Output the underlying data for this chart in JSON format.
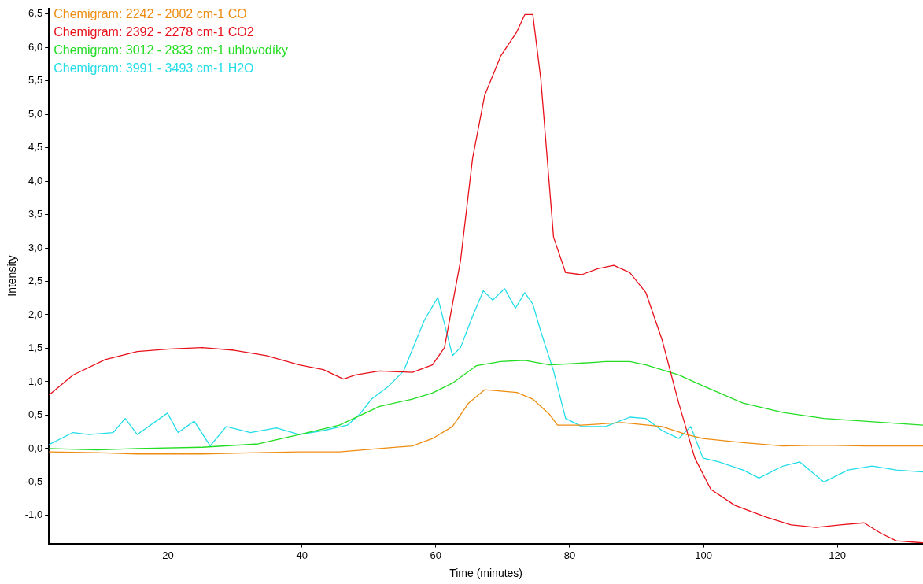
{
  "chart_data": {
    "type": "line",
    "xlabel": "Time (minutes)",
    "ylabel": "Intensity",
    "xlim": [
      2.2,
      132.8
    ],
    "ylim": [
      -1.42,
      6.58
    ],
    "xticks": [
      20,
      40,
      60,
      80,
      100,
      120
    ],
    "yticks": [
      {
        "value": -1.0,
        "label": "-1,0"
      },
      {
        "value": -0.5,
        "label": "-0,5"
      },
      {
        "value": 0,
        "label": "0,0"
      },
      {
        "value": 0.5,
        "label": "0,5"
      },
      {
        "value": 1.0,
        "label": "1,0"
      },
      {
        "value": 1.5,
        "label": "1,5"
      },
      {
        "value": 2.0,
        "label": "2,0"
      },
      {
        "value": 2.5,
        "label": "2,5"
      },
      {
        "value": 3.0,
        "label": "3,0"
      },
      {
        "value": 3.5,
        "label": "3,5"
      },
      {
        "value": 4.0,
        "label": "4,0"
      },
      {
        "value": 4.5,
        "label": "4,5"
      },
      {
        "value": 5.0,
        "label": "5,0"
      },
      {
        "value": 5.5,
        "label": "5,5"
      },
      {
        "value": 6.0,
        "label": "6,0"
      },
      {
        "value": 6.5,
        "label": "6,5"
      }
    ],
    "grid": false,
    "legend": "top left",
    "marker": "none",
    "line_style": "solid",
    "series": [
      {
        "name": "Chemigram: 2242 - 2002 cm-1 CO",
        "color": "#ee8c10",
        "x": [
          2.2,
          9.4,
          15.4,
          25.1,
          33.5,
          39.6,
          45.6,
          51.6,
          56.5,
          59.5,
          62.5,
          64.9,
          67.3,
          69.7,
          72.1,
          74.5,
          77.0,
          78.2,
          81.8,
          87.8,
          93.8,
          97.5,
          99.9,
          105.9,
          111.9,
          118.0,
          124.0,
          132.8
        ],
        "values": [
          -0.05,
          -0.06,
          -0.08,
          -0.08,
          -0.06,
          -0.05,
          -0.05,
          0,
          0.04,
          0.15,
          0.33,
          0.68,
          0.88,
          0.86,
          0.84,
          0.74,
          0.51,
          0.35,
          0.35,
          0.39,
          0.33,
          0.21,
          0.15,
          0.09,
          0.04,
          0.05,
          0.04,
          0.04
        ]
      },
      {
        "name": "Chemigram: 2392 - 2278 cm-1 CO2",
        "color": "#e8101a",
        "x": [
          2.2,
          5.8,
          10.6,
          15.4,
          20.3,
          25.1,
          29.9,
          34.7,
          39.6,
          43.2,
          46.2,
          48.0,
          51.6,
          56.5,
          59.5,
          61.3,
          63.7,
          65.5,
          67.3,
          69.7,
          72.1,
          73.3,
          74.5,
          75.7,
          77.6,
          79.4,
          81.8,
          84.2,
          86.6,
          89.0,
          91.4,
          93.8,
          96.3,
          98.7,
          101.1,
          104.7,
          109.5,
          113.1,
          116.8,
          120.4,
          124.0,
          126.4,
          128.8,
          132.8
        ],
        "values": [
          0.8,
          1.1,
          1.33,
          1.45,
          1.49,
          1.51,
          1.47,
          1.39,
          1.25,
          1.18,
          1.04,
          1.1,
          1.16,
          1.14,
          1.25,
          1.51,
          2.81,
          4.34,
          5.28,
          5.87,
          6.23,
          6.49,
          6.49,
          5.52,
          3.16,
          2.63,
          2.6,
          2.69,
          2.74,
          2.63,
          2.33,
          1.63,
          0.68,
          -0.14,
          -0.61,
          -0.85,
          -1.03,
          -1.14,
          -1.18,
          -1.14,
          -1.11,
          -1.26,
          -1.38,
          -1.41
        ]
      },
      {
        "name": "Chemigram: 3012 - 2833 cm-1 uhlovodíky",
        "color": "#22dd22",
        "x": [
          2.2,
          9.4,
          15.4,
          25.1,
          33.5,
          39.6,
          45.6,
          51.6,
          56.5,
          59.5,
          62.5,
          66.1,
          69.7,
          73.3,
          77.0,
          80.6,
          85.4,
          89.0,
          91.4,
          96.3,
          99.9,
          105.9,
          111.9,
          118.0,
          124.0,
          132.8
        ],
        "values": [
          0,
          -0.02,
          0,
          0.02,
          0.07,
          0.21,
          0.35,
          0.63,
          0.74,
          0.83,
          0.98,
          1.24,
          1.3,
          1.32,
          1.25,
          1.27,
          1.3,
          1.3,
          1.25,
          1.1,
          0.94,
          0.68,
          0.54,
          0.45,
          0.41,
          0.35
        ]
      },
      {
        "name": "Chemigram: 3991 - 3493 cm-1 H2O",
        "color": "#22dde8",
        "x": [
          2.2,
          5.8,
          8.2,
          11.8,
          13.6,
          15.4,
          19.9,
          21.5,
          23.9,
          26.3,
          28.7,
          32.3,
          36.2,
          39.6,
          43.2,
          46.8,
          48.6,
          50.4,
          52.8,
          55.2,
          58.3,
          60.3,
          62.5,
          63.7,
          65.5,
          67.1,
          68.5,
          70.3,
          71.9,
          73.3,
          74.5,
          75.7,
          77.6,
          79.4,
          81.8,
          85.4,
          89.0,
          91.4,
          93.8,
          96.3,
          98.1,
          99.9,
          102.3,
          105.9,
          108.3,
          111.9,
          114.4,
          118.0,
          121.6,
          125.2,
          128.8,
          132.8
        ],
        "values": [
          0.06,
          0.24,
          0.21,
          0.24,
          0.45,
          0.21,
          0.53,
          0.24,
          0.41,
          0.04,
          0.33,
          0.24,
          0.31,
          0.21,
          0.27,
          0.35,
          0.51,
          0.74,
          0.92,
          1.16,
          1.92,
          2.26,
          1.39,
          1.51,
          1.98,
          2.36,
          2.22,
          2.39,
          2.1,
          2.33,
          2.16,
          1.75,
          1.16,
          0.45,
          0.33,
          0.33,
          0.47,
          0.45,
          0.27,
          0.15,
          0.33,
          -0.14,
          -0.2,
          -0.32,
          -0.44,
          -0.26,
          -0.2,
          -0.5,
          -0.32,
          -0.26,
          -0.32,
          -0.35
        ]
      }
    ]
  }
}
